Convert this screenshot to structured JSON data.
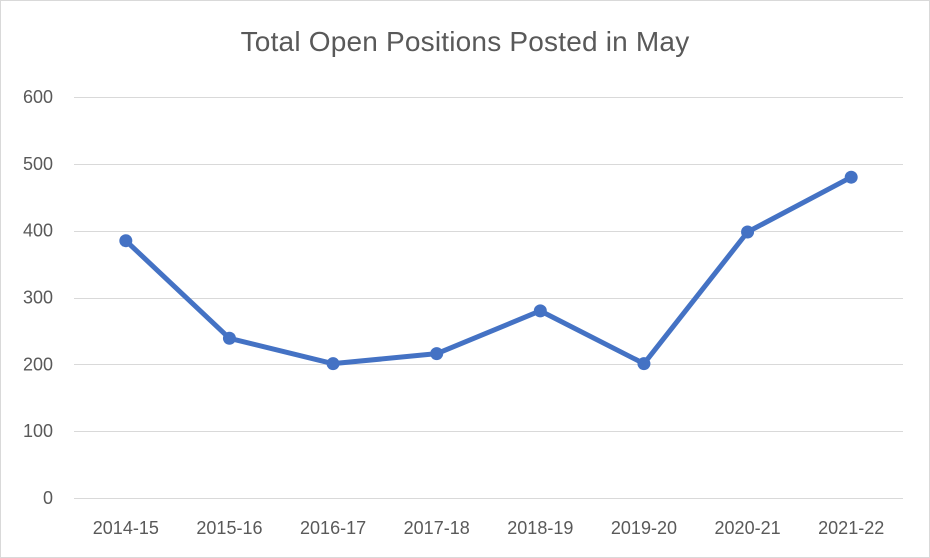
{
  "chart_data": {
    "type": "line",
    "title": "Total Open Positions Posted in May",
    "xlabel": "",
    "ylabel": "",
    "categories": [
      "2014-15",
      "2015-16",
      "2016-17",
      "2017-18",
      "2018-19",
      "2019-20",
      "2020-21",
      "2021-22"
    ],
    "series": [
      {
        "values": [
          385,
          239,
          201,
          216,
          280,
          201,
          398,
          480
        ]
      }
    ],
    "ylim": [
      0,
      600
    ],
    "yticks": [
      0,
      100,
      200,
      300,
      400,
      500,
      600
    ],
    "grid": true,
    "legend": "none",
    "colors": {
      "series": "#4472c4",
      "grid": "#d9d9d9",
      "text": "#595959"
    }
  }
}
